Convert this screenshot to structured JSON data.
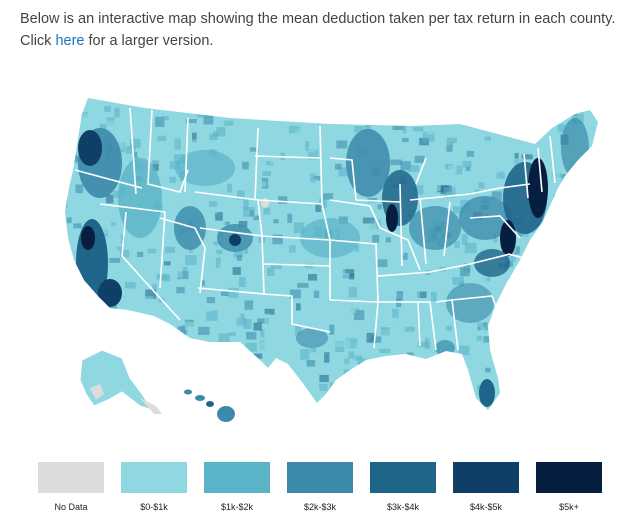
{
  "intro": {
    "text_before": "Below is an interactive map showing the mean deduction taken per tax return in each county. Click ",
    "link_text": "here",
    "text_after": " for a larger version."
  },
  "map": {
    "type": "choropleth",
    "subject": "mean deduction taken per tax return",
    "unit": "county",
    "state_border_color": "#ffffff"
  },
  "legend": {
    "items": [
      {
        "label": "No Data",
        "color": "#dcdcdc"
      },
      {
        "label": "$0-$1k",
        "color": "#8fd8e2"
      },
      {
        "label": "$1k-$2k",
        "color": "#5ab3c7"
      },
      {
        "label": "$2k-$3k",
        "color": "#3b8aaa"
      },
      {
        "label": "$3k-$4k",
        "color": "#1f6589"
      },
      {
        "label": "$4k-$5k",
        "color": "#0f3f66"
      },
      {
        "label": "$5k+",
        "color": "#061e3f"
      }
    ]
  }
}
